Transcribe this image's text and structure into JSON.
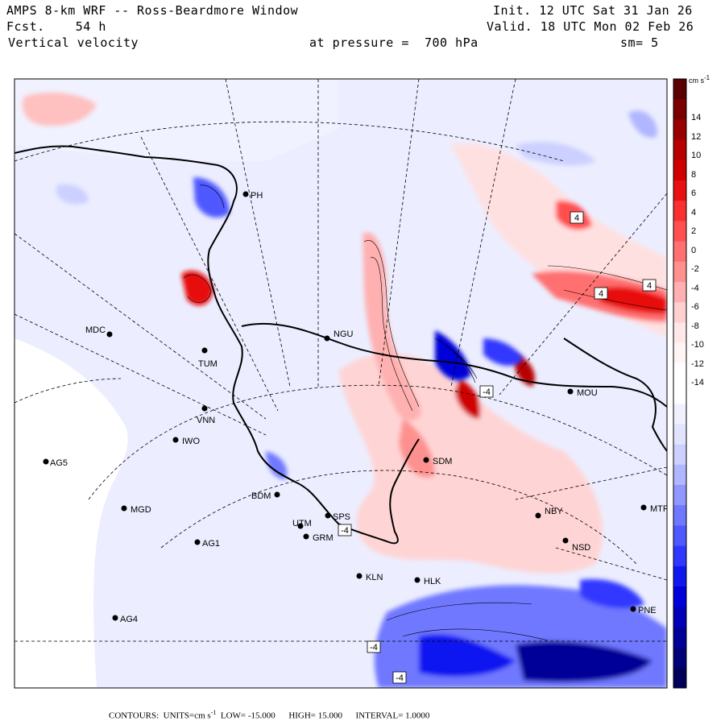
{
  "header": {
    "model_title": "AMPS 8-km WRF -- Ross-Beardmore Window",
    "forecast_label": "Fcst.",
    "forecast_hours": "54 h",
    "field_name": "Vertical velocity",
    "init_label": "Init.",
    "init_time": "12 UTC Sat 31 Jan 26",
    "valid_label": "Valid.",
    "valid_time": "18 UTC Mon 02 Feb 26",
    "pressure_label": "at pressure =",
    "pressure_value": "700 hPa",
    "smoothing": "sm= 5"
  },
  "colorbar": {
    "units": "cm s",
    "units_exp": "-1",
    "labels": [
      "14",
      "12",
      "10",
      "8",
      "6",
      "4",
      "2",
      "0",
      "-2",
      "-4",
      "-6",
      "-8",
      "-10",
      "-12",
      "-14"
    ],
    "colors": [
      "#5a0000",
      "#7a0000",
      "#9a0000",
      "#b80000",
      "#d00000",
      "#e81010",
      "#f83030",
      "#ff5050",
      "#ff7070",
      "#ff9090",
      "#ffb0b0",
      "#ffd0d0",
      "#ffe8e8",
      "#fff5f5",
      "#ffffff",
      "#ffffff",
      "#f0f0ff",
      "#e2e4ff",
      "#ccd0ff",
      "#b0b6ff",
      "#9098ff",
      "#7078ff",
      "#5058ff",
      "#3038ff",
      "#1018f0",
      "#0000d8",
      "#0000b8",
      "#000098",
      "#000078",
      "#00005a"
    ]
  },
  "stations": [
    {
      "id": "MDC"
    },
    {
      "id": "TUM"
    },
    {
      "id": "VNN"
    },
    {
      "id": "IWO"
    },
    {
      "id": "AG5"
    },
    {
      "id": "MGD"
    },
    {
      "id": "AG1"
    },
    {
      "id": "AG4"
    },
    {
      "id": "BDM"
    },
    {
      "id": "UTM"
    },
    {
      "id": "SPS"
    },
    {
      "id": "GRM"
    },
    {
      "id": "KLN"
    },
    {
      "id": "HLK"
    },
    {
      "id": "SDM"
    },
    {
      "id": "NGU"
    },
    {
      "id": "MOU"
    },
    {
      "id": "NBY"
    },
    {
      "id": "NSD"
    },
    {
      "id": "MTR"
    },
    {
      "id": "PNE"
    },
    {
      "id": "PH"
    }
  ],
  "contour_labels": [
    "4",
    "4",
    "4",
    "-4",
    "-4",
    "-4",
    "-4"
  ],
  "footer": {
    "contours_label": "CONTOURS:",
    "units_label": "UNITS=cm s",
    "units_exp": "-1",
    "low": "LOW= -15.000",
    "high": "HIGH= 15.000",
    "interval": "INTERVAL= 1.0000"
  }
}
